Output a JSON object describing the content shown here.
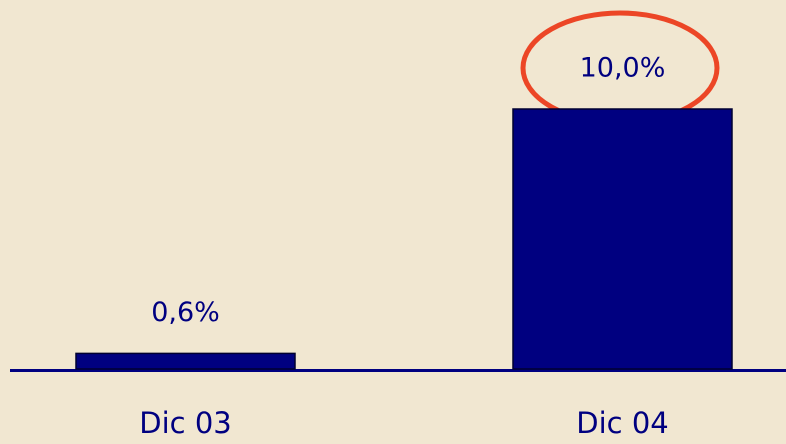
{
  "chart_data": {
    "type": "bar",
    "categories": [
      "Dic 03",
      "Dic 04"
    ],
    "values": [
      0.6,
      10.0
    ],
    "value_labels": [
      "0,6%",
      "10,0%"
    ],
    "color": "#000080"
  }
}
